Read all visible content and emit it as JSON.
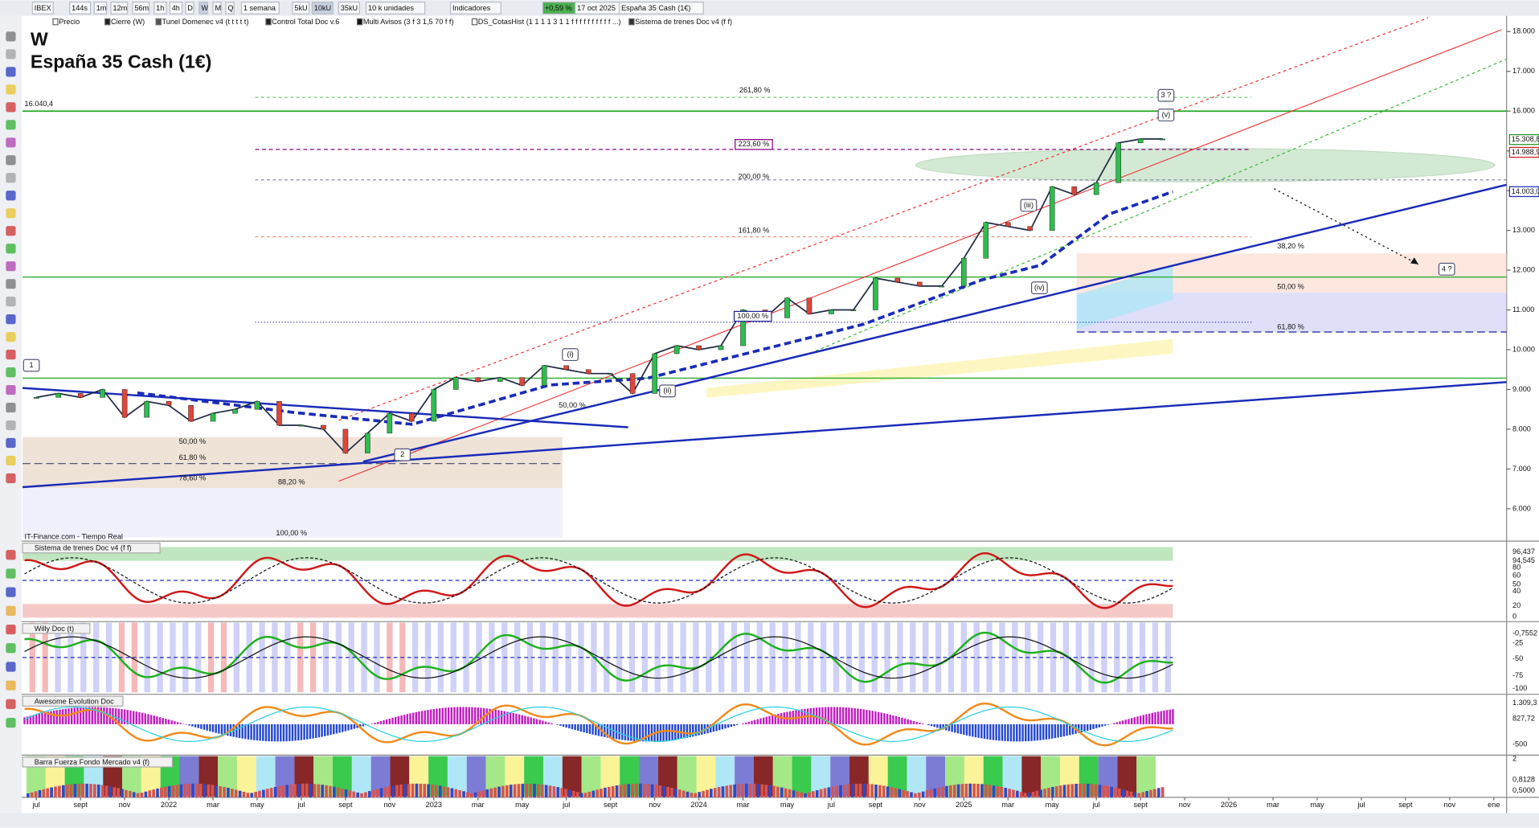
{
  "toolbar": {
    "items": [
      "IBEX",
      "144s",
      "1m",
      "12m",
      "56m",
      "1h",
      "4h",
      "D",
      "W",
      "M",
      "Q",
      "1 semana",
      "5kU",
      "10kU",
      "35kU",
      "10 k unidades",
      "Indicadores",
      "+0,59 %",
      "17 oct 2025",
      "España 35 Cash (1€)"
    ]
  },
  "legend": {
    "items": [
      "Precio",
      "Cierre (W)",
      "Tunel Domenec v4 (t t t t t)",
      "Control Total Doc v.6",
      "Multi Avisos (3 f 3 1,5 70 f f)",
      "DS_CotasHist (1 1 1 1 3 1 1 f f f f f f f f f f ...)",
      "Sistema de trenes Doc v4 (f f)"
    ]
  },
  "source": "IT-Finance.com - Tiempo Real",
  "chart_data": {
    "type": "line",
    "title": "W",
    "subtitle": "España 35 Cash (1€)",
    "x": [
      "2021-07",
      "2021-08",
      "2021-09",
      "2021-10",
      "2021-11",
      "2021-12",
      "2022-01",
      "2022-02",
      "2022-03",
      "2022-04",
      "2022-05",
      "2022-06",
      "2022-07",
      "2022-08",
      "2022-09",
      "2022-10",
      "2022-11",
      "2022-12",
      "2023-01",
      "2023-02",
      "2023-03",
      "2023-04",
      "2023-05",
      "2023-06",
      "2023-07",
      "2023-08",
      "2023-09",
      "2023-10",
      "2023-11",
      "2023-12",
      "2024-01",
      "2024-02",
      "2024-03",
      "2024-04",
      "2024-05",
      "2024-06",
      "2024-07",
      "2024-08",
      "2024-09",
      "2024-10",
      "2024-11",
      "2024-12",
      "2025-01",
      "2025-02",
      "2025-03",
      "2025-04",
      "2025-05",
      "2025-06",
      "2025-07",
      "2025-08",
      "2025-09",
      "2025-10"
    ],
    "series": [
      {
        "name": "Precio",
        "color": "#1f2a44",
        "values": [
          8800,
          8900,
          8800,
          9000,
          8300,
          8700,
          8600,
          8200,
          8400,
          8500,
          8700,
          8100,
          8100,
          8000,
          7400,
          7900,
          8400,
          8200,
          9000,
          9300,
          9200,
          9300,
          9100,
          9600,
          9500,
          9400,
          9400,
          8900,
          9900,
          10100,
          10000,
          10100,
          11000,
          10800,
          11300,
          10900,
          11000,
          11000,
          11800,
          11700,
          11600,
          11600,
          12300,
          13200,
          13100,
          13000,
          14100,
          13900,
          14200,
          15200,
          15300,
          15300
        ]
      }
    ],
    "ylim": [
      5400,
      18400
    ],
    "yticks": [
      {
        "value": 6000,
        "label": "6.000"
      },
      {
        "value": 7000,
        "label": "7.000"
      },
      {
        "value": 8000,
        "label": "8.000"
      },
      {
        "value": 9000,
        "label": "9.000"
      },
      {
        "value": 10000,
        "label": "10.000"
      },
      {
        "value": 11000,
        "label": "11.000"
      },
      {
        "value": 12000,
        "label": "12.000"
      },
      {
        "value": 13000,
        "label": "13.000"
      },
      {
        "value": 14000,
        "label": "14.000"
      },
      {
        "value": 15000,
        "label": "15.000"
      },
      {
        "value": 16000,
        "label": "16.000"
      },
      {
        "value": 17000,
        "label": "17.000"
      },
      {
        "value": 18000,
        "label": "18.000"
      }
    ],
    "xaxis_labels": [
      "jul",
      "sept",
      "nov",
      "2022",
      "mar",
      "may",
      "jul",
      "sept",
      "nov",
      "2023",
      "mar",
      "may",
      "jul",
      "sept",
      "nov",
      "2024",
      "mar",
      "may",
      "jul",
      "sept",
      "nov",
      "2025",
      "mar",
      "may",
      "jul",
      "sept",
      "nov",
      "2026",
      "mar",
      "may",
      "jul",
      "sept",
      "nov",
      "ene"
    ],
    "price_labels": [
      "16.040,4",
      "15.308,8",
      "14.988,9",
      "14.003,0"
    ],
    "fib_labels": [
      "261,80 %",
      "223,60 %",
      "200,00 %",
      "161,80 %",
      "100,00 %",
      "38,20 %",
      "50,00 %",
      "61,80 %",
      "50,00 %",
      "61,80 %",
      "78,60 %",
      "88,20 %",
      "100,00 %",
      "50,00 %"
    ],
    "wave_labels": [
      "1",
      "2",
      "(i)",
      "(ii)",
      "(iii)",
      "(iv)",
      "(v)",
      "3 ?",
      "4 ?"
    ]
  },
  "panels": [
    {
      "title": "Sistema de trenes Doc v4 (f f)",
      "axis": [
        "96,437",
        "94,545",
        "80",
        "60",
        "50",
        "40",
        "20",
        "0"
      ]
    },
    {
      "title": "Willy Doc (t)",
      "axis": [
        "-0,7552",
        "-25",
        "-50",
        "-75",
        "-100"
      ]
    },
    {
      "title": "Awesome Evolution Doc",
      "axis": [
        "1.309,3",
        "827,72",
        "-500"
      ]
    },
    {
      "title": "Barra Fuerza Fondo Mercado v4 (f)",
      "axis": [
        "2",
        "0,8128",
        "0,5000"
      ]
    }
  ]
}
